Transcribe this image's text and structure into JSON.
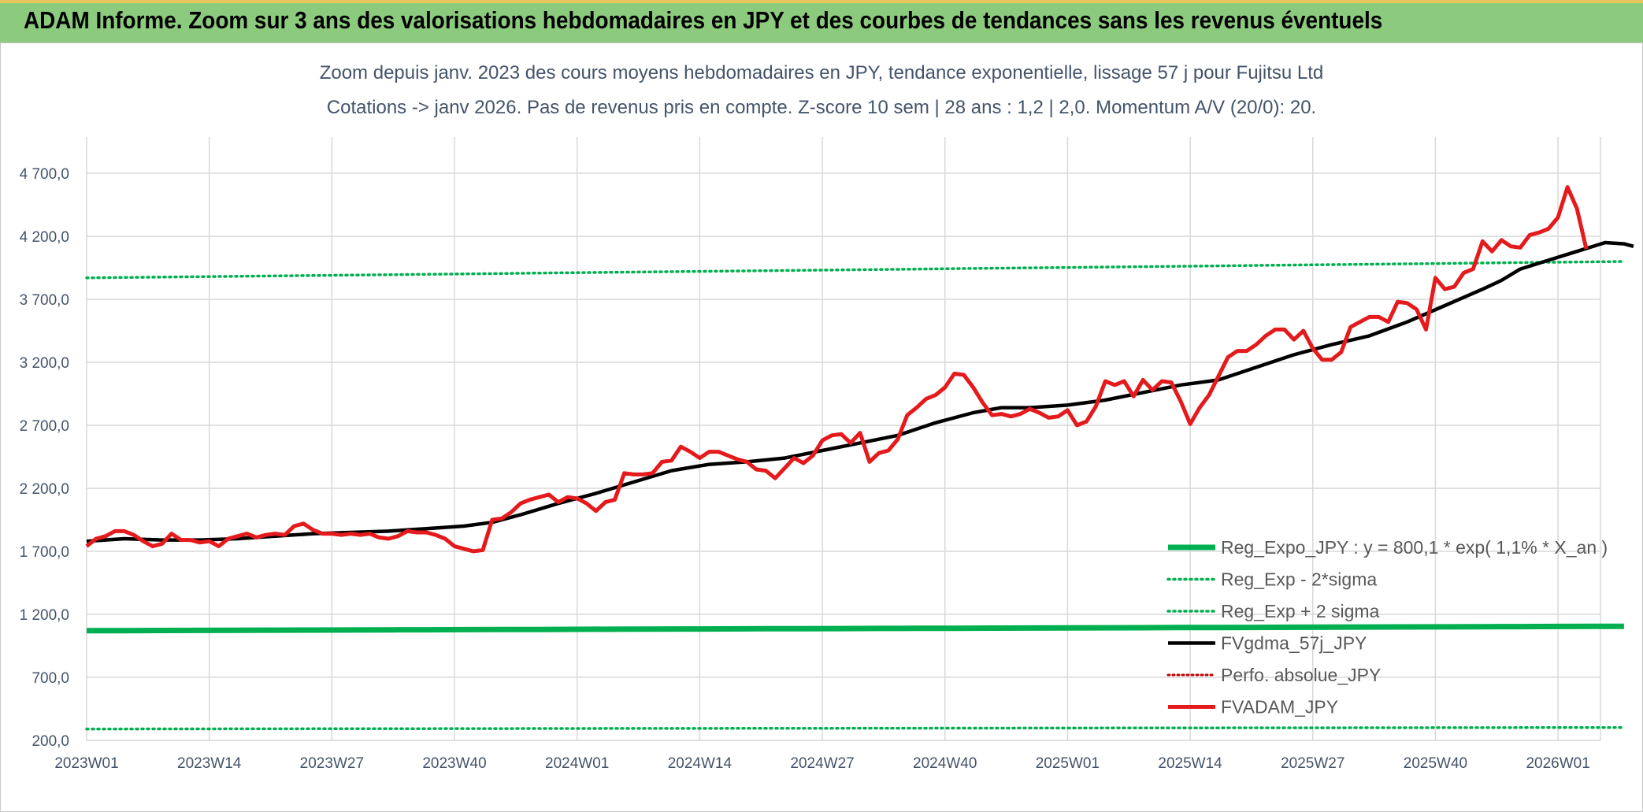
{
  "header": {
    "title": "ADAM Informe. Zoom sur 3 ans des valorisations hebdomadaires en JPY et des courbes de tendances sans les revenus éventuels"
  },
  "colors": {
    "banner": "#8ccb7e",
    "reg_expo": "#00b050",
    "fvgdma": "#000000",
    "fvadam": "#e41a1c",
    "perfo": "#c00000",
    "grid": "#d9d9d9",
    "text": "#44546a"
  },
  "chart_data": {
    "type": "line",
    "title_line1": "Zoom depuis janv. 2023 des cours moyens hebdomadaires en JPY, tendance exponentielle, lissage 57 j pour Fujitsu Ltd",
    "title_line2": "Cotations -> janv 2026. Pas de revenus pris en compte. Z-score 10 sem | 28 ans : 1,2 | 2,0. Momentum A/V (20/0): 20.",
    "ylim": [
      200,
      4900
    ],
    "y_ticks": [
      200,
      700,
      1200,
      1700,
      2200,
      2700,
      3200,
      3700,
      4200,
      4700
    ],
    "y_tick_labels": [
      "200,0",
      "700,0",
      "1 200,0",
      "1 700,0",
      "2 200,0",
      "2 700,0",
      "3 200,0",
      "3 700,0",
      "4 200,0",
      "4 700,0"
    ],
    "x_tick_labels": [
      "2023W01",
      "2023W14",
      "2023W27",
      "2023W40",
      "2024W01",
      "2024W14",
      "2024W27",
      "2024W40",
      "2025W01",
      "2025W14",
      "2025W27",
      "2025W40",
      "2026W01"
    ],
    "x_tick_weeks": [
      0,
      13,
      26,
      39,
      52,
      65,
      78,
      91,
      104,
      117,
      130,
      143,
      156
    ],
    "week_count": 161,
    "legend": [
      {
        "key": "reg_expo",
        "label": "Reg_Expo_JPY : y = 800,1 * exp( 1,1% *  X_an )",
        "style": "solid-thick"
      },
      {
        "key": "reg_minus",
        "label": "Reg_Exp - 2*sigma",
        "style": "dotted-green"
      },
      {
        "key": "reg_plus",
        "label": "Reg_Exp + 2 sigma",
        "style": "dotted-green"
      },
      {
        "key": "fvgdma",
        "label": "FVgdma_57j_JPY",
        "style": "solid-black"
      },
      {
        "key": "perfo",
        "label": "Perfo. absolue_JPY",
        "style": "dotted-red"
      },
      {
        "key": "fvadam",
        "label": "FVADAM_JPY",
        "style": "solid-red"
      }
    ],
    "series": [
      {
        "name": "Reg_Expo_JPY",
        "start": 1070,
        "end": 1105
      },
      {
        "name": "Reg_Exp - 2*sigma",
        "start": 290,
        "end": 302
      },
      {
        "name": "Reg_Exp + 2 sigma",
        "start": 3870,
        "end": 4000
      },
      {
        "name": "FVgdma_57j_JPY",
        "points": [
          [
            0,
            1780
          ],
          [
            4,
            1800
          ],
          [
            8,
            1790
          ],
          [
            12,
            1790
          ],
          [
            16,
            1800
          ],
          [
            20,
            1820
          ],
          [
            24,
            1840
          ],
          [
            28,
            1850
          ],
          [
            32,
            1860
          ],
          [
            36,
            1880
          ],
          [
            40,
            1900
          ],
          [
            43,
            1930
          ],
          [
            46,
            1990
          ],
          [
            50,
            2080
          ],
          [
            54,
            2160
          ],
          [
            58,
            2250
          ],
          [
            62,
            2340
          ],
          [
            66,
            2390
          ],
          [
            70,
            2410
          ],
          [
            74,
            2440
          ],
          [
            78,
            2500
          ],
          [
            82,
            2560
          ],
          [
            86,
            2620
          ],
          [
            90,
            2720
          ],
          [
            94,
            2800
          ],
          [
            97,
            2840
          ],
          [
            100,
            2840
          ],
          [
            104,
            2860
          ],
          [
            108,
            2900
          ],
          [
            112,
            2960
          ],
          [
            116,
            3020
          ],
          [
            120,
            3060
          ],
          [
            124,
            3160
          ],
          [
            128,
            3260
          ],
          [
            132,
            3340
          ],
          [
            136,
            3410
          ],
          [
            140,
            3520
          ],
          [
            144,
            3650
          ],
          [
            148,
            3780
          ],
          [
            150,
            3850
          ],
          [
            152,
            3940
          ],
          [
            155,
            4010
          ],
          [
            158,
            4080
          ],
          [
            161,
            4150
          ],
          [
            163,
            4140
          ],
          [
            164,
            4120
          ]
        ]
      },
      {
        "name": "FVADAM_JPY",
        "points": [
          [
            0,
            1740
          ],
          [
            1,
            1800
          ],
          [
            2,
            1820
          ],
          [
            3,
            1860
          ],
          [
            4,
            1860
          ],
          [
            5,
            1830
          ],
          [
            6,
            1780
          ],
          [
            7,
            1740
          ],
          [
            8,
            1760
          ],
          [
            9,
            1840
          ],
          [
            10,
            1790
          ],
          [
            11,
            1790
          ],
          [
            12,
            1770
          ],
          [
            13,
            1780
          ],
          [
            14,
            1740
          ],
          [
            15,
            1800
          ],
          [
            16,
            1820
          ],
          [
            17,
            1840
          ],
          [
            18,
            1810
          ],
          [
            19,
            1830
          ],
          [
            20,
            1840
          ],
          [
            21,
            1830
          ],
          [
            22,
            1900
          ],
          [
            23,
            1920
          ],
          [
            24,
            1870
          ],
          [
            25,
            1840
          ],
          [
            26,
            1840
          ],
          [
            27,
            1830
          ],
          [
            28,
            1840
          ],
          [
            29,
            1830
          ],
          [
            30,
            1840
          ],
          [
            31,
            1810
          ],
          [
            32,
            1800
          ],
          [
            33,
            1820
          ],
          [
            34,
            1860
          ],
          [
            35,
            1850
          ],
          [
            36,
            1850
          ],
          [
            37,
            1830
          ],
          [
            38,
            1800
          ],
          [
            39,
            1740
          ],
          [
            40,
            1720
          ],
          [
            41,
            1700
          ],
          [
            42,
            1710
          ],
          [
            43,
            1950
          ],
          [
            44,
            1960
          ],
          [
            45,
            2010
          ],
          [
            46,
            2080
          ],
          [
            47,
            2110
          ],
          [
            48,
            2130
          ],
          [
            49,
            2150
          ],
          [
            50,
            2090
          ],
          [
            51,
            2130
          ],
          [
            52,
            2120
          ],
          [
            53,
            2080
          ],
          [
            54,
            2020
          ],
          [
            55,
            2090
          ],
          [
            56,
            2110
          ],
          [
            57,
            2320
          ],
          [
            58,
            2310
          ],
          [
            59,
            2310
          ],
          [
            60,
            2320
          ],
          [
            61,
            2410
          ],
          [
            62,
            2420
          ],
          [
            63,
            2530
          ],
          [
            64,
            2490
          ],
          [
            65,
            2440
          ],
          [
            66,
            2490
          ],
          [
            67,
            2490
          ],
          [
            68,
            2460
          ],
          [
            69,
            2430
          ],
          [
            70,
            2410
          ],
          [
            71,
            2350
          ],
          [
            72,
            2340
          ],
          [
            73,
            2280
          ],
          [
            74,
            2360
          ],
          [
            75,
            2440
          ],
          [
            76,
            2400
          ],
          [
            77,
            2460
          ],
          [
            78,
            2580
          ],
          [
            79,
            2620
          ],
          [
            80,
            2630
          ],
          [
            81,
            2560
          ],
          [
            82,
            2640
          ],
          [
            83,
            2410
          ],
          [
            84,
            2480
          ],
          [
            85,
            2500
          ],
          [
            86,
            2590
          ],
          [
            87,
            2780
          ],
          [
            88,
            2840
          ],
          [
            89,
            2910
          ],
          [
            90,
            2940
          ],
          [
            91,
            3000
          ],
          [
            92,
            3110
          ],
          [
            93,
            3100
          ],
          [
            94,
            3000
          ],
          [
            95,
            2880
          ],
          [
            96,
            2780
          ],
          [
            97,
            2790
          ],
          [
            98,
            2770
          ],
          [
            99,
            2790
          ],
          [
            100,
            2830
          ],
          [
            101,
            2800
          ],
          [
            102,
            2760
          ],
          [
            103,
            2770
          ],
          [
            104,
            2820
          ],
          [
            105,
            2700
          ],
          [
            106,
            2730
          ],
          [
            107,
            2850
          ],
          [
            108,
            3050
          ],
          [
            109,
            3020
          ],
          [
            110,
            3050
          ],
          [
            111,
            2930
          ],
          [
            112,
            3060
          ],
          [
            113,
            2980
          ],
          [
            114,
            3050
          ],
          [
            115,
            3040
          ],
          [
            116,
            2890
          ],
          [
            117,
            2710
          ],
          [
            118,
            2840
          ],
          [
            119,
            2940
          ],
          [
            120,
            3090
          ],
          [
            121,
            3240
          ],
          [
            122,
            3290
          ],
          [
            123,
            3290
          ],
          [
            124,
            3340
          ],
          [
            125,
            3410
          ],
          [
            126,
            3460
          ],
          [
            127,
            3460
          ],
          [
            128,
            3380
          ],
          [
            129,
            3450
          ],
          [
            130,
            3310
          ],
          [
            131,
            3220
          ],
          [
            132,
            3220
          ],
          [
            133,
            3280
          ],
          [
            134,
            3480
          ],
          [
            135,
            3520
          ],
          [
            136,
            3560
          ],
          [
            137,
            3560
          ],
          [
            138,
            3520
          ],
          [
            139,
            3680
          ],
          [
            140,
            3670
          ],
          [
            141,
            3620
          ],
          [
            142,
            3460
          ],
          [
            143,
            3870
          ],
          [
            144,
            3780
          ],
          [
            145,
            3800
          ],
          [
            146,
            3910
          ],
          [
            147,
            3940
          ],
          [
            148,
            4160
          ],
          [
            149,
            4080
          ],
          [
            150,
            4170
          ],
          [
            151,
            4120
          ],
          [
            152,
            4110
          ],
          [
            153,
            4210
          ],
          [
            154,
            4230
          ],
          [
            155,
            4260
          ],
          [
            156,
            4350
          ],
          [
            157,
            4590
          ],
          [
            158,
            4420
          ],
          [
            159,
            4100
          ]
        ]
      }
    ]
  }
}
